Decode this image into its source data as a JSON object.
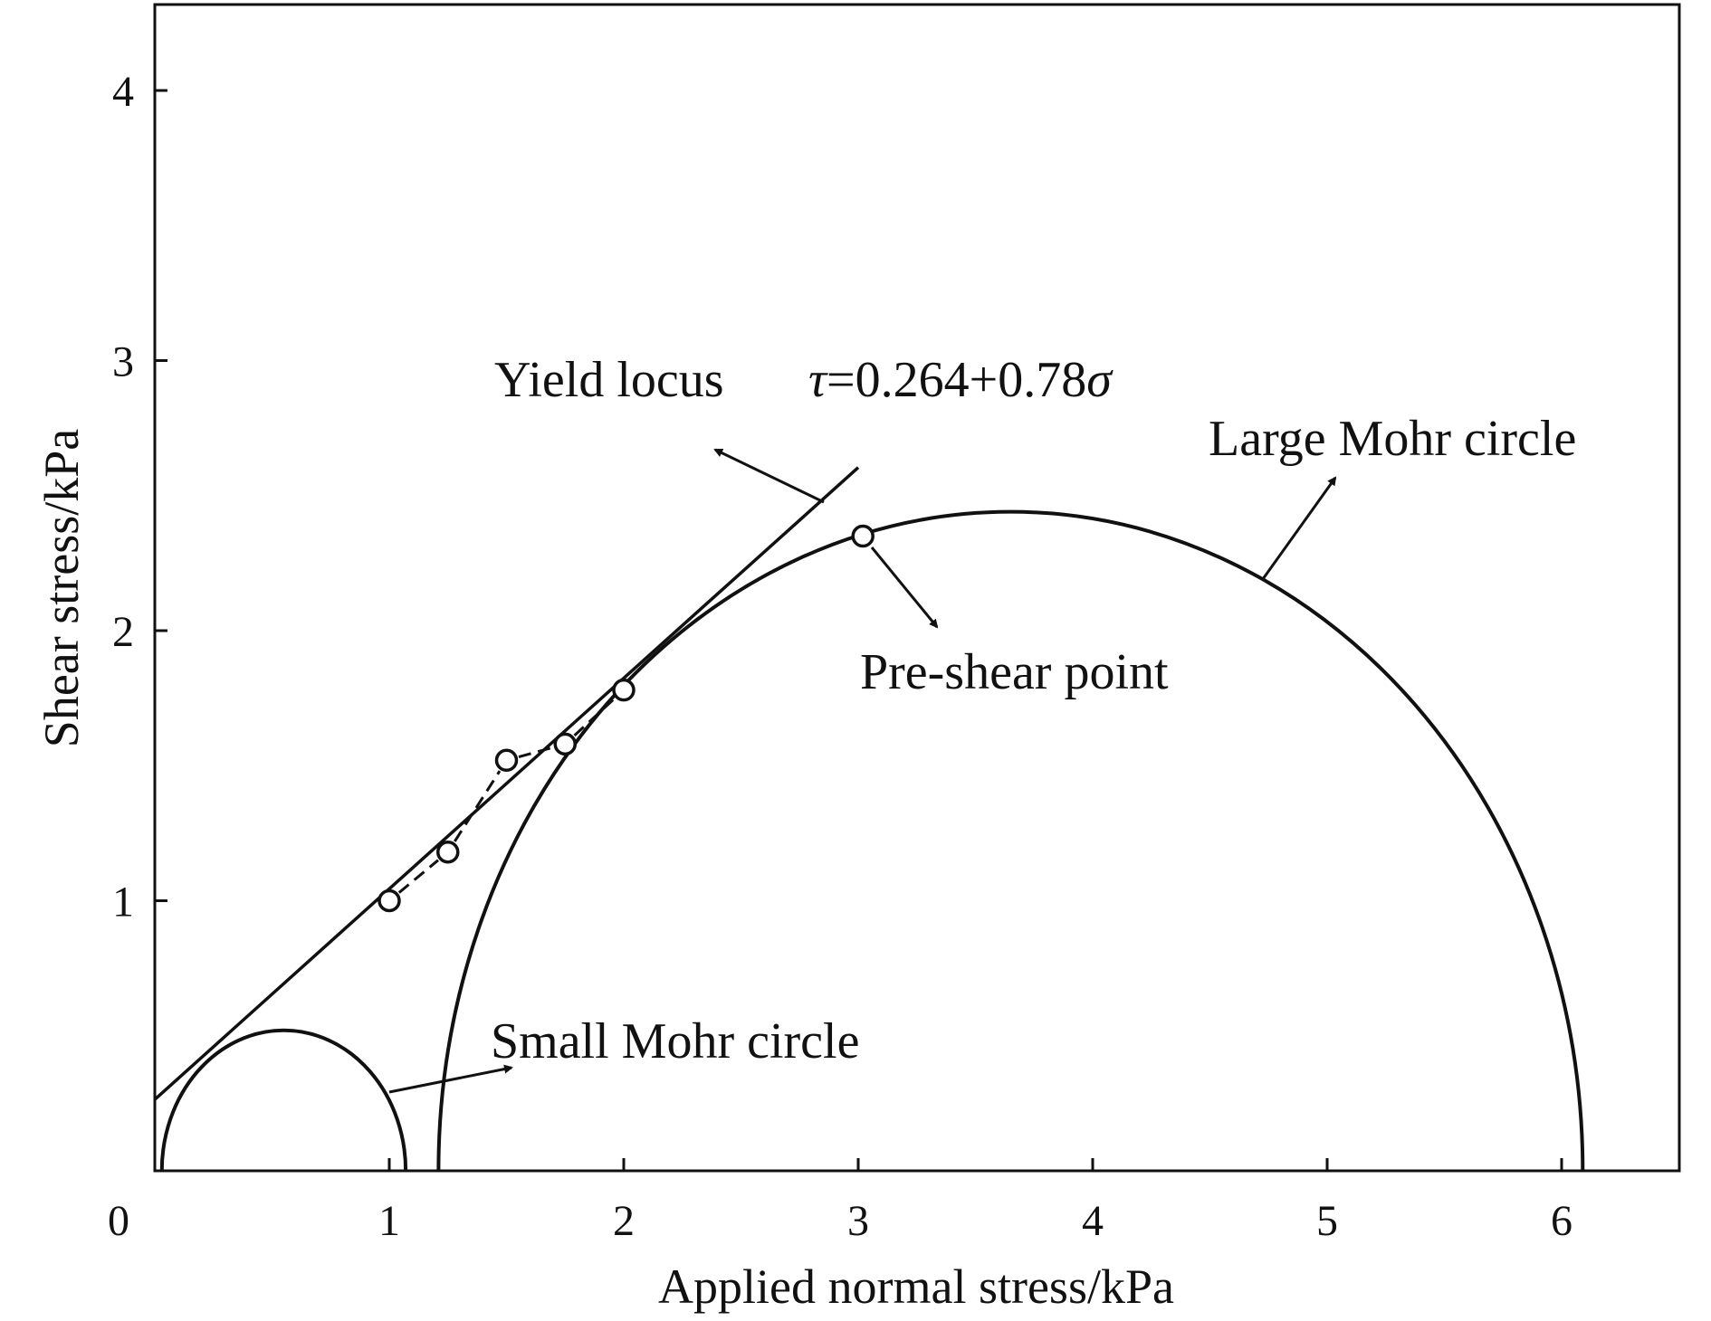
{
  "chart_data": {
    "type": "scatter",
    "title": "",
    "xlabel": "Applied normal stress/kPa",
    "ylabel": "Shear stress/kPa",
    "xlim": [
      0,
      6.5
    ],
    "ylim": [
      0,
      4.3
    ],
    "x_ticks": [
      "0",
      "1",
      "2",
      "3",
      "4",
      "5",
      "6"
    ],
    "y_ticks": [
      "1",
      "2",
      "3",
      "4"
    ],
    "grid": false,
    "colors": {
      "line": "#111111",
      "marker_fill": "#ffffff"
    },
    "series": [
      {
        "name": "",
        "kind": "points",
        "marker": "open-circle",
        "points": [
          {
            "x": 1.0,
            "y": 1.0
          },
          {
            "x": 1.25,
            "y": 1.18
          },
          {
            "x": 1.5,
            "y": 1.52
          },
          {
            "x": 1.75,
            "y": 1.58
          },
          {
            "x": 2.0,
            "y": 1.78
          }
        ]
      },
      {
        "name": "",
        "kind": "pre-shear-point",
        "marker": "open-circle",
        "points": [
          {
            "x": 3.02,
            "y": 2.35
          }
        ]
      },
      {
        "name": "",
        "kind": "yield-locus",
        "intercept": 0.264,
        "slope": 0.78,
        "x_range": [
          0,
          3.0
        ]
      },
      {
        "name": "",
        "kind": "mohr-circle",
        "id": "large",
        "center": 3.65,
        "radius": 2.44
      },
      {
        "name": "",
        "kind": "mohr-circle",
        "id": "small",
        "center": 0.55,
        "radius": 0.52
      }
    ],
    "annotations": {
      "yield_locus": "Yield locus",
      "formula_tau": "τ",
      "formula_body": "=0.264+0.78",
      "formula_sigma": "σ",
      "large_circle": "Large Mohr circle",
      "pre_shear": "Pre-shear point",
      "small_circle": "Small Mohr circle"
    }
  }
}
